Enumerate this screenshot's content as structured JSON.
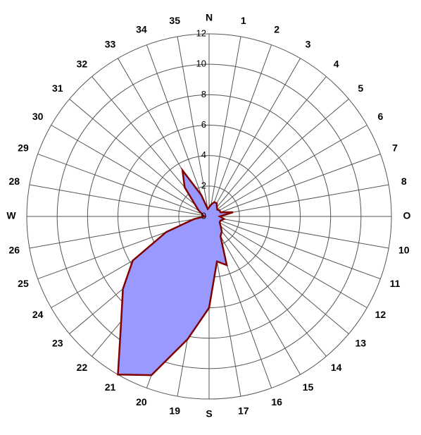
{
  "chart_data": {
    "type": "radar",
    "categories": [
      "N",
      "1",
      "2",
      "3",
      "4",
      "5",
      "6",
      "7",
      "8",
      "O",
      "10",
      "11",
      "12",
      "13",
      "14",
      "15",
      "16",
      "17",
      "S",
      "19",
      "20",
      "21",
      "22",
      "23",
      "24",
      "25",
      "26",
      "W",
      "28",
      "29",
      "30",
      "31",
      "32",
      "33",
      "34",
      "35"
    ],
    "values": [
      0.6,
      0.8,
      1,
      1,
      0.8,
      0.7,
      0.8,
      0.8,
      1.6,
      0.7,
      1,
      0.8,
      0.8,
      1,
      1.3,
      1.5,
      3.4,
      3,
      6,
      8.2,
      11.1,
      12,
      9,
      7.4,
      5.8,
      3,
      1,
      0.3,
      0.4,
      0.5,
      0.8,
      1.2,
      2.5,
      3.5,
      1.5,
      0.5
    ],
    "fill": "#9999ff",
    "color": "#800000",
    "ylim": [
      0,
      12
    ],
    "yticks": [
      0,
      2,
      4,
      6,
      8,
      10,
      12
    ],
    "grid": true
  }
}
